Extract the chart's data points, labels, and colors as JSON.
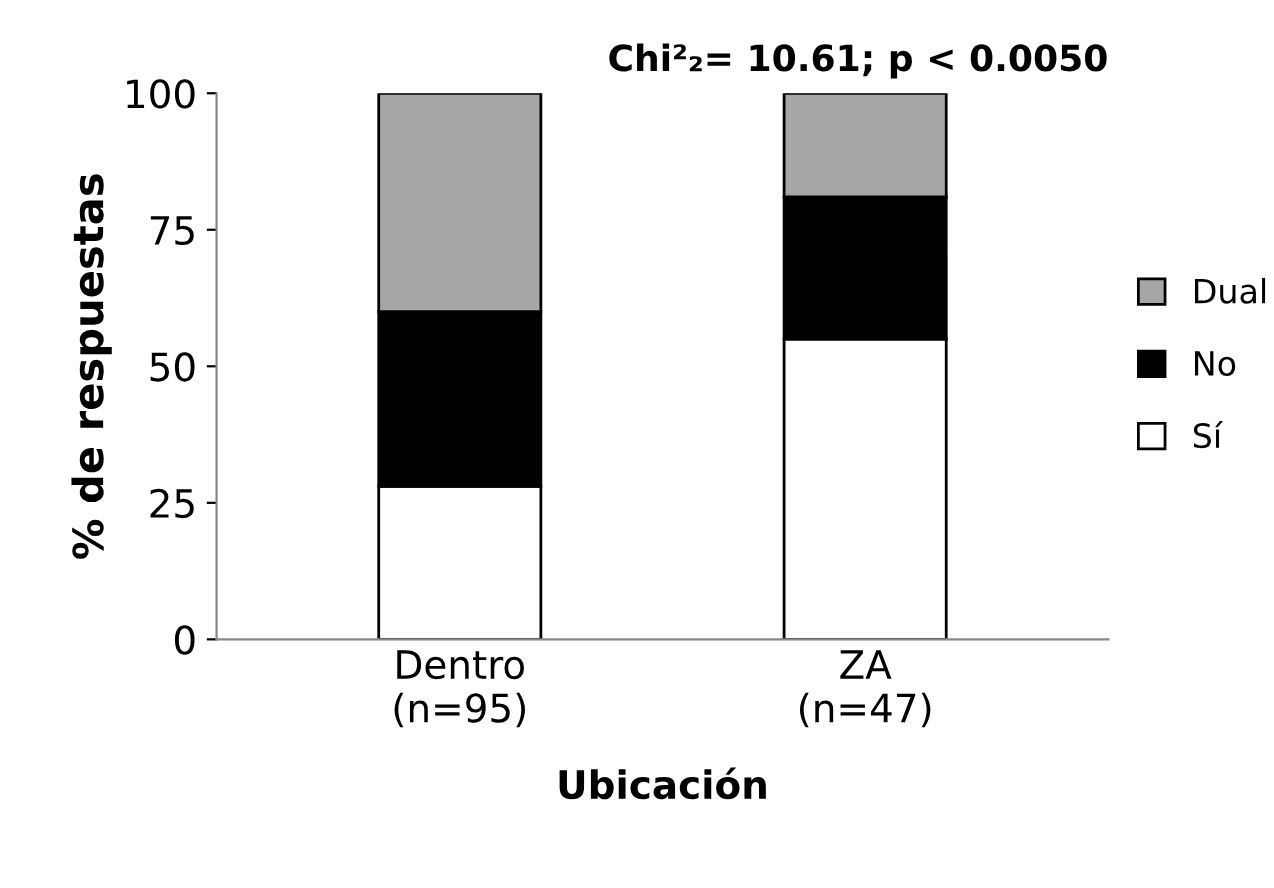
{
  "chart_data": {
    "type": "bar",
    "stacked": true,
    "title": "Chi²₂= 10.61; p < 0.0050",
    "xlabel": "Ubicación",
    "ylabel": "% de respuestas",
    "categories": [
      "Dentro\n(n=95)",
      "ZA\n(n=47)"
    ],
    "series": [
      {
        "name": "Sí",
        "color": "#ffffff",
        "values": [
          28,
          55
        ]
      },
      {
        "name": "No",
        "color": "#000000",
        "values": [
          32,
          26
        ]
      },
      {
        "name": "Dual",
        "color": "#a6a6a6",
        "values": [
          40,
          19
        ]
      }
    ],
    "ylim": [
      0,
      100
    ],
    "yticks": [
      0,
      25,
      50,
      75,
      100
    ],
    "grid": false,
    "legend": "right"
  }
}
